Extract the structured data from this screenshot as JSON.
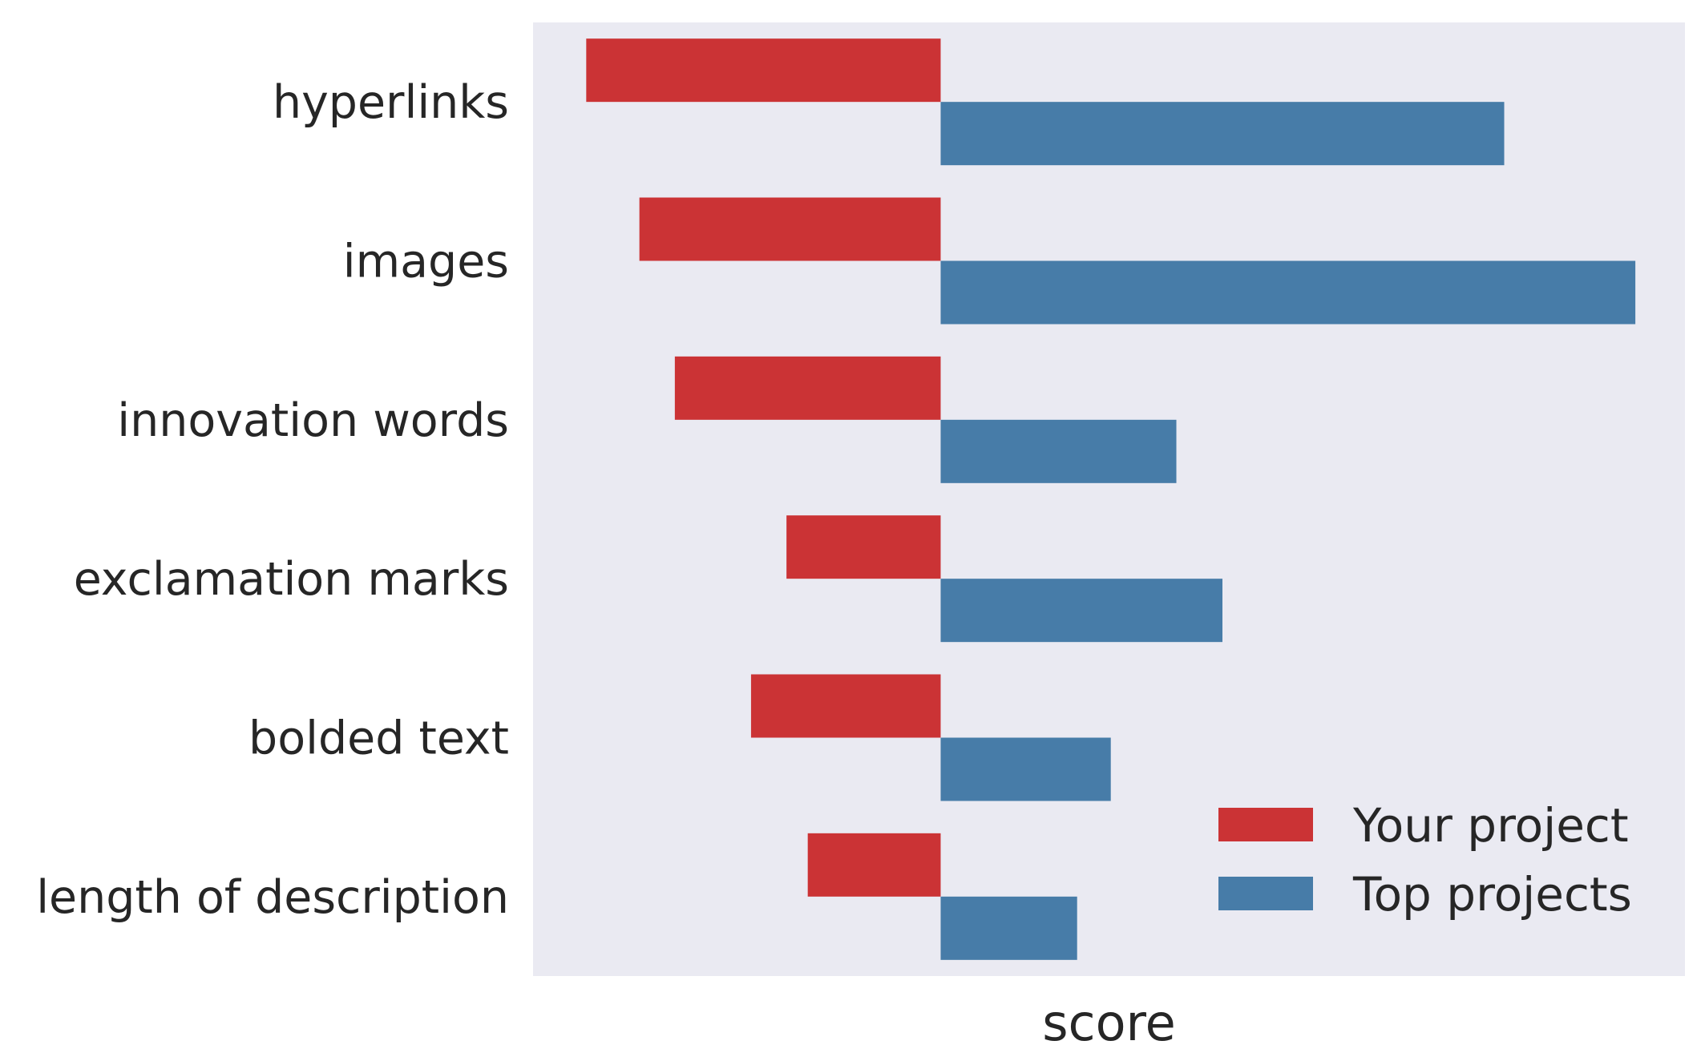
{
  "chart_data": {
    "type": "bar",
    "orientation": "horizontal",
    "categories": [
      "hyperlinks",
      "images",
      "innovation words",
      "exclamation marks",
      "bolded text",
      "length of description"
    ],
    "series": [
      {
        "name": "Your project",
        "color": "#cb3335",
        "values": [
          -1.0,
          -0.85,
          -0.75,
          -0.435,
          -0.535,
          -0.375
        ]
      },
      {
        "name": "Top projects",
        "color": "#477ca8",
        "values": [
          1.59,
          1.96,
          0.665,
          0.795,
          0.48,
          0.385
        ]
      }
    ],
    "xlabel": "score",
    "ylabel": "",
    "xlim": [
      -1.15,
      2.1
    ],
    "x_ticks_visible": false,
    "grid": false,
    "legend_position": "lower-right",
    "background": "#eaeaf2"
  }
}
